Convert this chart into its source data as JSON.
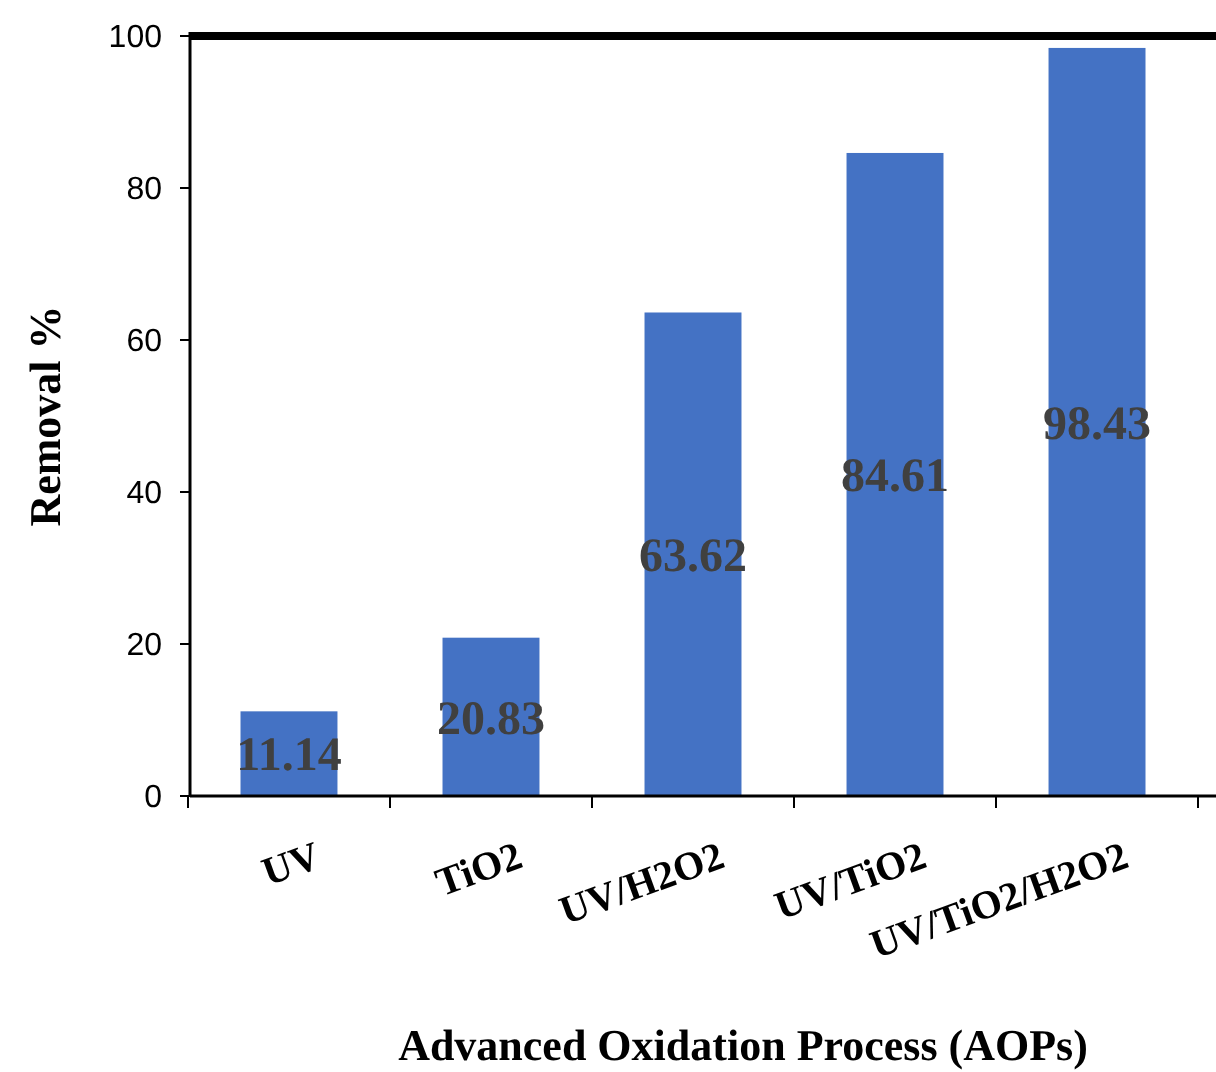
{
  "chart_data": {
    "type": "bar",
    "xlabel": "Advanced Oxidation Process (AOPs)",
    "ylabel": "Removal %",
    "categories": [
      "UV",
      "TiO2",
      "UV/H2O2",
      "UV/TiO2",
      "UV/TiO2/H2O2"
    ],
    "values": [
      11.14,
      20.83,
      63.62,
      84.61,
      98.43
    ],
    "color": "#4472c4",
    "ylim": [
      0,
      100
    ],
    "yticks": [
      0,
      20,
      40,
      60,
      80,
      100
    ],
    "grid": false,
    "data_labels": true
  }
}
